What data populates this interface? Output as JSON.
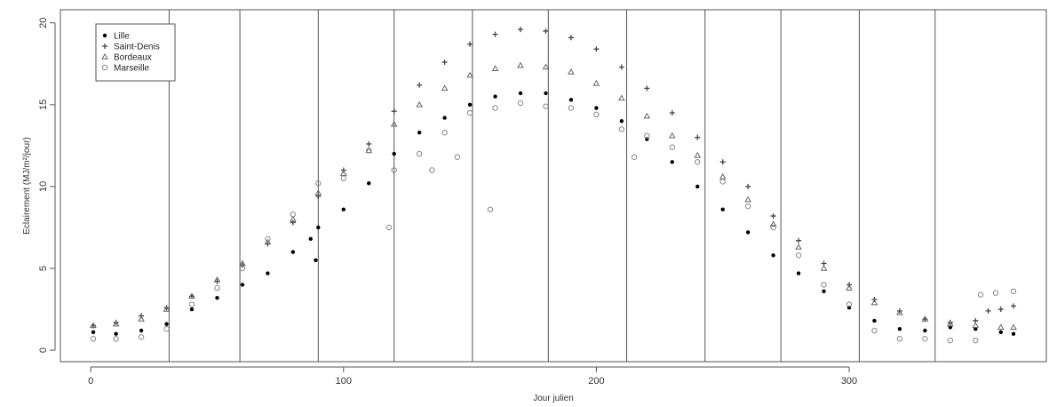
{
  "chart_data": {
    "type": "scatter",
    "title": "",
    "xlabel": "Jour julien",
    "ylabel": "Eclairement (MJ/m²/jour)",
    "xlim": [
      -12,
      378
    ],
    "ylim": [
      -0.7,
      20.8
    ],
    "x_ticks": [
      0,
      100,
      200,
      300
    ],
    "y_ticks": [
      0,
      5,
      10,
      15,
      20
    ],
    "vertical_lines": [
      31,
      59,
      90,
      120,
      151,
      181,
      212,
      243,
      273,
      304,
      334
    ],
    "grid": false,
    "legend_position": "top-left",
    "series": [
      {
        "name": "Lille",
        "marker": "filled-circle",
        "color": "#000000",
        "points": [
          [
            1,
            1.1
          ],
          [
            10,
            1.0
          ],
          [
            20,
            1.2
          ],
          [
            30,
            1.6
          ],
          [
            40,
            2.5
          ],
          [
            50,
            3.2
          ],
          [
            60,
            4.0
          ],
          [
            70,
            4.7
          ],
          [
            80,
            6.0
          ],
          [
            87,
            6.8
          ],
          [
            89,
            5.5
          ],
          [
            90,
            7.5
          ],
          [
            100,
            8.6
          ],
          [
            110,
            10.2
          ],
          [
            120,
            12.0
          ],
          [
            130,
            13.3
          ],
          [
            140,
            14.2
          ],
          [
            150,
            15.0
          ],
          [
            160,
            15.5
          ],
          [
            170,
            15.7
          ],
          [
            180,
            15.7
          ],
          [
            190,
            15.3
          ],
          [
            200,
            14.8
          ],
          [
            210,
            14.0
          ],
          [
            220,
            12.9
          ],
          [
            230,
            11.5
          ],
          [
            240,
            10.0
          ],
          [
            250,
            8.6
          ],
          [
            260,
            7.2
          ],
          [
            270,
            5.8
          ],
          [
            280,
            4.7
          ],
          [
            290,
            3.6
          ],
          [
            300,
            2.6
          ],
          [
            310,
            1.8
          ],
          [
            320,
            1.3
          ],
          [
            330,
            1.2
          ],
          [
            340,
            1.4
          ],
          [
            350,
            1.3
          ],
          [
            360,
            1.1
          ],
          [
            365,
            1.0
          ]
        ]
      },
      {
        "name": "Saint-Denis",
        "marker": "plus",
        "color": "#444444",
        "points": [
          [
            1,
            1.5
          ],
          [
            10,
            1.7
          ],
          [
            20,
            2.1
          ],
          [
            30,
            2.6
          ],
          [
            40,
            3.3
          ],
          [
            50,
            4.2
          ],
          [
            60,
            5.2
          ],
          [
            70,
            6.5
          ],
          [
            80,
            7.8
          ],
          [
            90,
            9.4
          ],
          [
            100,
            11.0
          ],
          [
            110,
            12.6
          ],
          [
            120,
            14.6
          ],
          [
            130,
            16.2
          ],
          [
            140,
            17.6
          ],
          [
            150,
            18.7
          ],
          [
            160,
            19.3
          ],
          [
            170,
            19.6
          ],
          [
            180,
            19.5
          ],
          [
            190,
            19.1
          ],
          [
            200,
            18.4
          ],
          [
            210,
            17.3
          ],
          [
            220,
            16.0
          ],
          [
            230,
            14.5
          ],
          [
            240,
            13.0
          ],
          [
            250,
            11.5
          ],
          [
            260,
            10.0
          ],
          [
            270,
            8.2
          ],
          [
            280,
            6.7
          ],
          [
            290,
            5.3
          ],
          [
            300,
            4.0
          ],
          [
            310,
            3.1
          ],
          [
            320,
            2.4
          ],
          [
            330,
            1.9
          ],
          [
            340,
            1.7
          ],
          [
            350,
            1.8
          ],
          [
            355,
            2.4
          ],
          [
            360,
            2.5
          ],
          [
            365,
            2.7
          ]
        ]
      },
      {
        "name": "Bordeaux",
        "marker": "triangle",
        "color": "#666666",
        "points": [
          [
            1,
            1.5
          ],
          [
            10,
            1.6
          ],
          [
            20,
            1.9
          ],
          [
            30,
            2.5
          ],
          [
            40,
            3.3
          ],
          [
            50,
            4.3
          ],
          [
            60,
            5.3
          ],
          [
            70,
            6.6
          ],
          [
            80,
            8.0
          ],
          [
            90,
            9.6
          ],
          [
            100,
            10.8
          ],
          [
            110,
            12.2
          ],
          [
            120,
            13.8
          ],
          [
            130,
            15.0
          ],
          [
            140,
            16.0
          ],
          [
            150,
            16.8
          ],
          [
            160,
            17.2
          ],
          [
            170,
            17.4
          ],
          [
            180,
            17.3
          ],
          [
            190,
            17.0
          ],
          [
            200,
            16.3
          ],
          [
            210,
            15.4
          ],
          [
            220,
            14.3
          ],
          [
            230,
            13.1
          ],
          [
            240,
            11.9
          ],
          [
            250,
            10.6
          ],
          [
            260,
            9.2
          ],
          [
            270,
            7.7
          ],
          [
            280,
            6.3
          ],
          [
            290,
            5.0
          ],
          [
            300,
            3.8
          ],
          [
            310,
            2.9
          ],
          [
            320,
            2.3
          ],
          [
            330,
            1.9
          ],
          [
            340,
            1.6
          ],
          [
            350,
            1.5
          ],
          [
            360,
            1.4
          ],
          [
            365,
            1.4
          ]
        ]
      },
      {
        "name": "Marseille",
        "marker": "open-circle",
        "color": "#888888",
        "points": [
          [
            1,
            0.7
          ],
          [
            10,
            0.7
          ],
          [
            20,
            0.8
          ],
          [
            30,
            1.3
          ],
          [
            40,
            2.8
          ],
          [
            50,
            3.8
          ],
          [
            60,
            5.0
          ],
          [
            70,
            6.8
          ],
          [
            80,
            8.3
          ],
          [
            90,
            10.2
          ],
          [
            100,
            10.5
          ],
          [
            110,
            12.2
          ],
          [
            118,
            7.5
          ],
          [
            120,
            11.0
          ],
          [
            130,
            12.0
          ],
          [
            135,
            11.0
          ],
          [
            140,
            13.3
          ],
          [
            145,
            11.8
          ],
          [
            150,
            14.5
          ],
          [
            158,
            8.6
          ],
          [
            160,
            14.8
          ],
          [
            170,
            15.1
          ],
          [
            180,
            14.9
          ],
          [
            190,
            14.8
          ],
          [
            200,
            14.4
          ],
          [
            210,
            13.5
          ],
          [
            215,
            11.8
          ],
          [
            220,
            13.1
          ],
          [
            230,
            12.4
          ],
          [
            240,
            11.5
          ],
          [
            250,
            10.3
          ],
          [
            260,
            8.8
          ],
          [
            270,
            7.5
          ],
          [
            280,
            5.8
          ],
          [
            290,
            4.0
          ],
          [
            300,
            2.8
          ],
          [
            310,
            1.2
          ],
          [
            320,
            0.7
          ],
          [
            330,
            0.7
          ],
          [
            340,
            0.6
          ],
          [
            350,
            0.6
          ],
          [
            352,
            3.4
          ],
          [
            358,
            3.5
          ],
          [
            365,
            3.6
          ]
        ]
      }
    ]
  }
}
